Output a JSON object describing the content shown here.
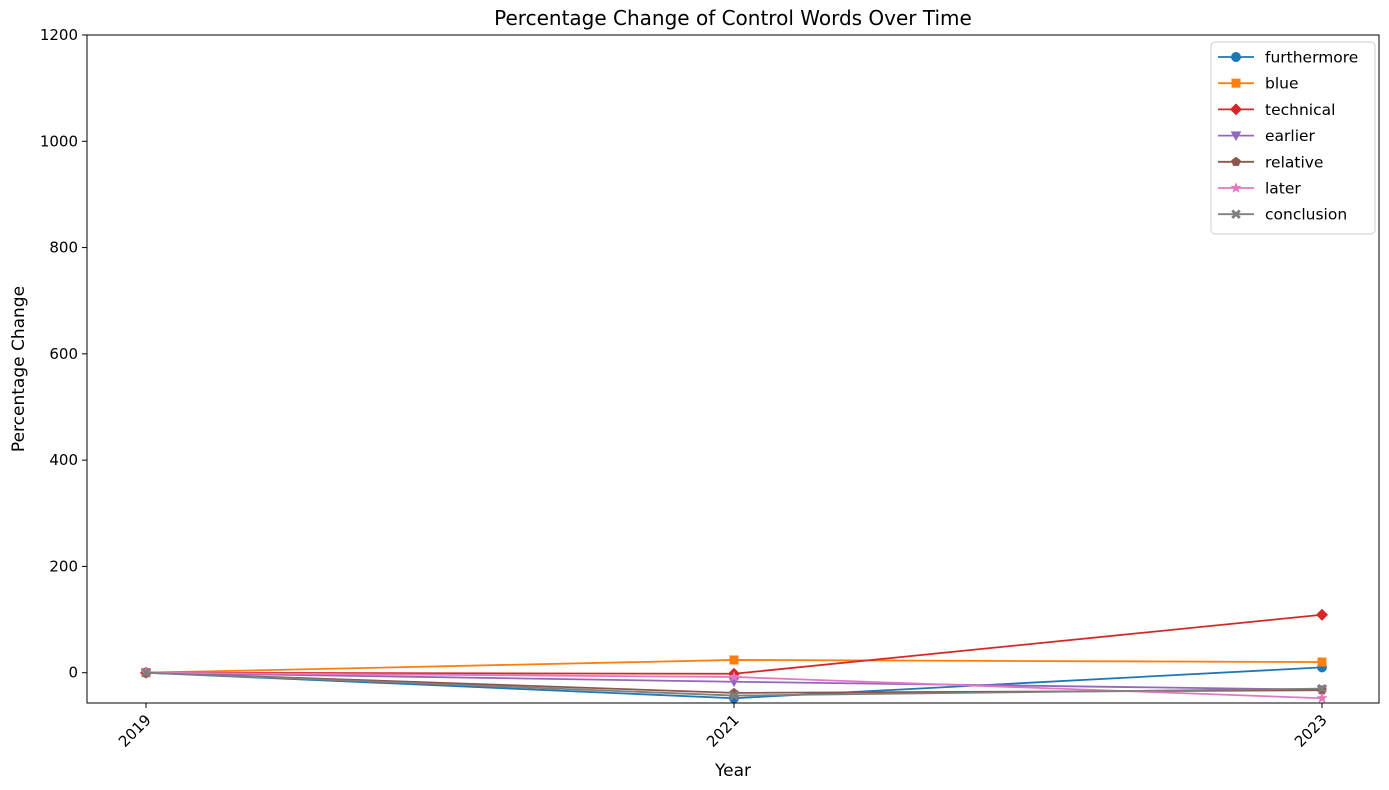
{
  "chart_data": {
    "type": "line",
    "title": "Percentage Change of Control Words Over Time",
    "xlabel": "Year",
    "ylabel": "Percentage Change",
    "x": [
      "2019",
      "2021",
      "2023"
    ],
    "ylim": [
      -57,
      1200
    ],
    "yticks": [
      0,
      200,
      400,
      600,
      800,
      1000,
      1200
    ],
    "grid": false,
    "legend_position": "top-right",
    "series": [
      {
        "name": "furthermore",
        "color": "#1f77b4",
        "marker": "circle",
        "values": [
          0,
          -48,
          10
        ]
      },
      {
        "name": "blue",
        "color": "#ff7f0e",
        "marker": "square",
        "values": [
          0,
          24,
          20
        ]
      },
      {
        "name": "technical",
        "color": "#d62728",
        "marker": "diamond",
        "values": [
          0,
          -2,
          109
        ]
      },
      {
        "name": "earlier",
        "color": "#9467bd",
        "marker": "triangle-down",
        "values": [
          0,
          -17,
          -32
        ]
      },
      {
        "name": "relative",
        "color": "#8c564b",
        "marker": "pentagon",
        "values": [
          0,
          -38,
          -33
        ]
      },
      {
        "name": "later",
        "color": "#e377c2",
        "marker": "star",
        "values": [
          0,
          -8,
          -48
        ]
      },
      {
        "name": "conclusion",
        "color": "#7f7f7f",
        "marker": "x-filled",
        "values": [
          0,
          -43,
          -30
        ]
      }
    ]
  }
}
